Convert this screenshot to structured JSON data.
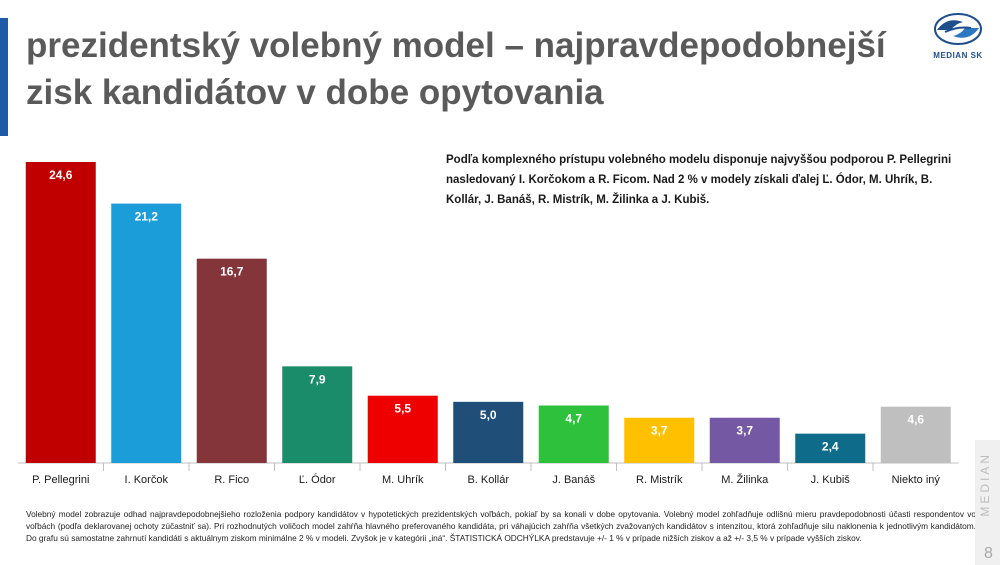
{
  "header": {
    "title": "prezidentský volebný model – najpravdepodobnejší zisk kandidátov v dobe opytovania",
    "logo_text": "MEDIAN SK"
  },
  "description": "Podľa komplexného prístupu volebného modelu disponuje najvyššou podporou P. Pellegrini nasledovaný I. Korčokom a R. Ficom. Nad 2 % v modely získali ďalej Ľ. Ódor, M. Uhrík, B. Kollár, J. Banáš, R. Mistrík, M. Žilinka a J. Kubiš.",
  "chart_data": {
    "type": "bar",
    "title": "",
    "xlabel": "",
    "ylabel": "",
    "ylim": [
      0,
      25.5
    ],
    "grid": false,
    "categories": [
      "P. Pellegrini",
      "I. Korčok",
      "R. Fico",
      "Ľ. Ódor",
      "M. Uhrík",
      "B. Kollár",
      "J. Banáš",
      "R. Mistrík",
      "M. Žilinka",
      "J. Kubiš",
      "Niekto iný"
    ],
    "values": [
      24.6,
      21.2,
      16.7,
      7.9,
      5.5,
      5.0,
      4.7,
      3.7,
      3.7,
      2.4,
      4.6
    ],
    "value_labels": [
      "24,6",
      "21,2",
      "16,7",
      "7,9",
      "5,5",
      "5,0",
      "4,7",
      "3,7",
      "3,7",
      "2,4",
      "4,6"
    ],
    "colors": [
      "#c00000",
      "#1b9dd9",
      "#843539",
      "#1b8c6a",
      "#ee0000",
      "#1f4e79",
      "#2ec13b",
      "#ffc000",
      "#7458a3",
      "#0f6b8a",
      "#bfbfbf"
    ],
    "label_colors": [
      "#ffffff",
      "#ffffff",
      "#ffffff",
      "#ffffff",
      "#ffffff",
      "#ffffff",
      "#ffffff",
      "#ffffff",
      "#ffffff",
      "#ffffff",
      "#ffffff"
    ]
  },
  "footnote": "Volebný model zobrazuje odhad najpravdepodobnejšieho rozloženia podpory kandidátov v hypotetických prezidentských voľbách, pokiaľ by sa konali v dobe opytovania. Volebný model zohľadňuje odlišnú mieru pravdepodobnosti účasti respondentov vo voľbách (podľa deklarovanej ochoty zúčastniť sa). Pri rozhodnutých voličoch model zahŕňa hlavného preferovaného kandidáta, pri váhajúcich zahŕňa všetkých zvažovaných kandidátov s intenzitou, ktorá zohľadňuje silu naklonenia k jednotlivým kandidátom. Do grafu sú samostatne zahrnutí kandidáti s aktuálnym ziskom minimálne 2 % v modeli. Zvyšok je v kategórii „iná“. ŠTATISTICKÁ ODCHÝLKA predstavuje +/- 1 % v prípade nižších ziskov a až +/- 3,5 % v prípade vyšších ziskov.",
  "side_label": "MEDIAN",
  "page_number": "8"
}
